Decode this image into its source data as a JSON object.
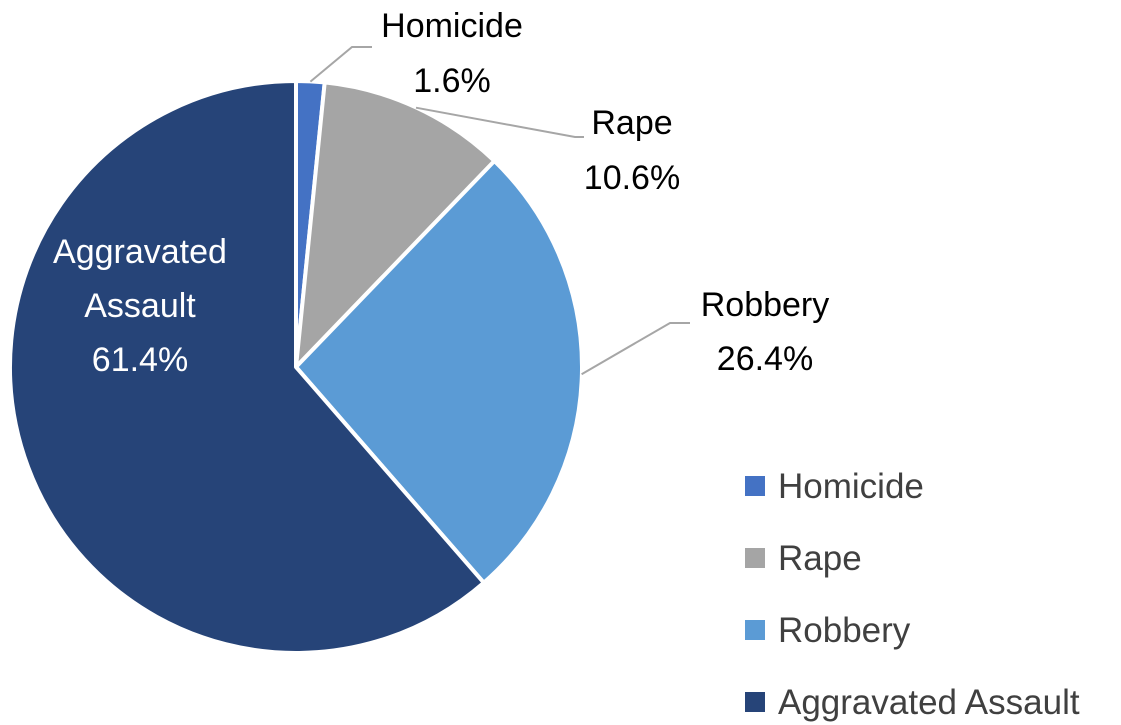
{
  "chart_data": {
    "type": "pie",
    "title": "",
    "legend_position": "bottom-right",
    "slices": [
      {
        "label": "Homicide",
        "value": 1.6,
        "value_label": "1.6%",
        "color": "#4472C4"
      },
      {
        "label": "Rape",
        "value": 10.6,
        "value_label": "10.6%",
        "color": "#A5A5A5"
      },
      {
        "label": "Robbery",
        "value": 26.4,
        "value_label": "26.4%",
        "color": "#5B9BD5"
      },
      {
        "label": "Aggravated Assault",
        "label_lines": [
          "Aggravated",
          "Assault"
        ],
        "value": 61.4,
        "value_label": "61.4%",
        "color": "#264478"
      }
    ],
    "legend": [
      "Homicide",
      "Rape",
      "Robbery",
      "Aggravated Assault"
    ]
  }
}
